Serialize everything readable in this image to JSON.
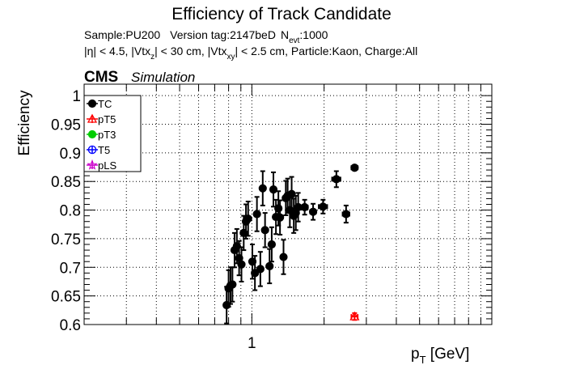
{
  "chart_data": {
    "type": "scatter",
    "title": "Efficiency of Track Candidate",
    "subtitle1": {
      "sample": "Sample:PU200",
      "version": "Version tag:2147beD",
      "nevt_symbol": "N",
      "nevt_sub": "evt",
      "nevt_value": ":1000"
    },
    "subtitle2": {
      "eta": "|η| < 4.5, |Vtx",
      "sub_z": "z",
      "mid1": "| < 30 cm, |Vtx",
      "sub_xy": "xy",
      "rest": "| < 2.5 cm, Particle:Kaon, Charge:All"
    },
    "cms_label": "CMS",
    "simulation_label": "Simulation",
    "ylabel": "Efficiency",
    "xlabel": {
      "main": "p",
      "sub": "T",
      "unit": " [GeV]"
    },
    "x_scale": "log",
    "xlim": [
      0.2,
      10
    ],
    "ylim": [
      0.6,
      1.02
    ],
    "x_tick_labels": [
      {
        "value": 1,
        "label": "1"
      }
    ],
    "y_ticks": [
      0.6,
      0.65,
      0.7,
      0.75,
      0.8,
      0.85,
      0.9,
      0.95,
      1
    ],
    "y_tick_labels": [
      "0.6",
      "0.65",
      "0.7",
      "0.75",
      "0.8",
      "0.85",
      "0.9",
      "0.95",
      "1"
    ],
    "grid": true,
    "legend_position": "top-left",
    "series": [
      {
        "name": "TC",
        "color": "#000000",
        "marker": "filled-circle",
        "points": [
          {
            "x": 0.785,
            "y": 0.634,
            "xerr": 0.01,
            "yerr": 0.032
          },
          {
            "x": 0.8,
            "y": 0.663,
            "xerr": 0.01,
            "yerr": 0.032
          },
          {
            "x": 0.815,
            "y": 0.668,
            "xerr": 0.01,
            "yerr": 0.032
          },
          {
            "x": 0.83,
            "y": 0.67,
            "xerr": 0.01,
            "yerr": 0.03
          },
          {
            "x": 0.847,
            "y": 0.73,
            "xerr": 0.01,
            "yerr": 0.03
          },
          {
            "x": 0.866,
            "y": 0.737,
            "xerr": 0.01,
            "yerr": 0.03
          },
          {
            "x": 0.885,
            "y": 0.716,
            "xerr": 0.01,
            "yerr": 0.03
          },
          {
            "x": 0.905,
            "y": 0.705,
            "xerr": 0.01,
            "yerr": 0.03
          },
          {
            "x": 0.925,
            "y": 0.76,
            "xerr": 0.011,
            "yerr": 0.03
          },
          {
            "x": 0.945,
            "y": 0.78,
            "xerr": 0.011,
            "yerr": 0.03
          },
          {
            "x": 0.965,
            "y": 0.785,
            "xerr": 0.011,
            "yerr": 0.03
          },
          {
            "x": 1.005,
            "y": 0.71,
            "xerr": 0.012,
            "yerr": 0.03
          },
          {
            "x": 1.03,
            "y": 0.69,
            "xerr": 0.012,
            "yerr": 0.03
          },
          {
            "x": 1.05,
            "y": 0.793,
            "xerr": 0.012,
            "yerr": 0.03
          },
          {
            "x": 1.085,
            "y": 0.697,
            "xerr": 0.012,
            "yerr": 0.03
          },
          {
            "x": 1.11,
            "y": 0.838,
            "xerr": 0.012,
            "yerr": 0.03
          },
          {
            "x": 1.135,
            "y": 0.765,
            "xerr": 0.013,
            "yerr": 0.03
          },
          {
            "x": 1.185,
            "y": 0.702,
            "xerr": 0.013,
            "yerr": 0.03
          },
          {
            "x": 1.21,
            "y": 0.74,
            "xerr": 0.013,
            "yerr": 0.03
          },
          {
            "x": 1.23,
            "y": 0.836,
            "xerr": 0.013,
            "yerr": 0.03
          },
          {
            "x": 1.26,
            "y": 0.788,
            "xerr": 0.014,
            "yerr": 0.03
          },
          {
            "x": 1.29,
            "y": 0.803,
            "xerr": 0.014,
            "yerr": 0.03
          },
          {
            "x": 1.31,
            "y": 0.787,
            "xerr": 0.014,
            "yerr": 0.03
          },
          {
            "x": 1.355,
            "y": 0.718,
            "xerr": 0.014,
            "yerr": 0.03
          },
          {
            "x": 1.385,
            "y": 0.821,
            "xerr": 0.015,
            "yerr": 0.03
          },
          {
            "x": 1.41,
            "y": 0.825,
            "xerr": 0.015,
            "yerr": 0.03
          },
          {
            "x": 1.44,
            "y": 0.8,
            "xerr": 0.015,
            "yerr": 0.03
          },
          {
            "x": 1.465,
            "y": 0.828,
            "xerr": 0.015,
            "yerr": 0.03
          },
          {
            "x": 1.495,
            "y": 0.79,
            "xerr": 0.016,
            "yerr": 0.03
          },
          {
            "x": 1.525,
            "y": 0.795,
            "xerr": 0.016,
            "yerr": 0.03
          },
          {
            "x": 1.56,
            "y": 0.805,
            "xerr": 0.016,
            "yerr": 0.025
          },
          {
            "x": 1.66,
            "y": 0.805,
            "xerr": 0.05,
            "yerr": 0.013
          },
          {
            "x": 1.8,
            "y": 0.797,
            "xerr": 0.05,
            "yerr": 0.014
          },
          {
            "x": 1.98,
            "y": 0.806,
            "xerr": 0.08,
            "yerr": 0.012
          },
          {
            "x": 2.25,
            "y": 0.854,
            "xerr": 0.09,
            "yerr": 0.014
          },
          {
            "x": 2.47,
            "y": 0.793,
            "xerr": 0.08,
            "yerr": 0.015
          },
          {
            "x": 2.68,
            "y": 0.874,
            "xerr": 0.08,
            "yerr": 0.004
          }
        ]
      },
      {
        "name": "pT5",
        "color": "#ff0000",
        "marker": "open-triangle",
        "points": [
          {
            "x": 2.68,
            "y": 0.614,
            "xerr": 0.08,
            "yerr": 0.006
          }
        ]
      },
      {
        "name": "pT3",
        "color": "#00cc00",
        "marker": "filled-circle",
        "points": []
      },
      {
        "name": "T5",
        "color": "#0000ff",
        "marker": "open-circle",
        "points": []
      },
      {
        "name": "pLS",
        "color": "#cc00cc",
        "marker": "open-star",
        "points": []
      }
    ]
  }
}
